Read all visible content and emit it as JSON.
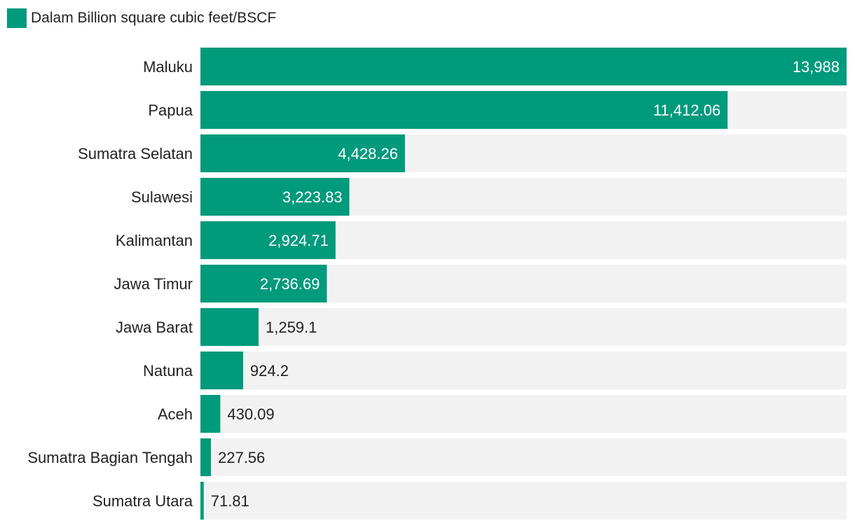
{
  "chart_data": {
    "type": "bar",
    "orientation": "horizontal",
    "legend": {
      "label": "Dalam Billion square cubic feet/BSCF",
      "position": "top-left"
    },
    "series": [
      {
        "name": "Dalam Billion square cubic feet/BSCF",
        "color": "#009a7c"
      }
    ],
    "categories": [
      "Maluku",
      "Papua",
      "Sumatra Selatan",
      "Sulawesi",
      "Kalimantan",
      "Jawa Timur",
      "Jawa Barat",
      "Natuna",
      "Aceh",
      "Sumatra Bagian Tengah",
      "Sumatra Utara"
    ],
    "values": [
      13988,
      11412.06,
      4428.26,
      3223.83,
      2924.71,
      2736.69,
      1259.1,
      924.2,
      430.09,
      227.56,
      71.81
    ],
    "value_labels": [
      "13,988",
      "11,412.06",
      "4,428.26",
      "3,223.83",
      "2,924.71",
      "2,736.69",
      "1,259.1",
      "924.2",
      "430.09",
      "227.56",
      "71.81"
    ],
    "xlim": [
      0,
      13988
    ],
    "grid": false,
    "bar_color": "#009a7c",
    "track_color": "#f2f2f2",
    "inside_label_color": "#ffffff",
    "outside_label_color": "#222222"
  }
}
